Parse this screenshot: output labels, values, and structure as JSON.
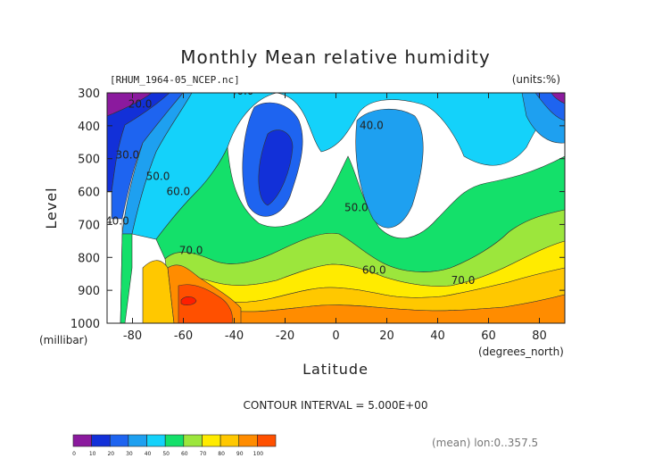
{
  "title": "Monthly Mean relative humidity",
  "file_label": "[RHUM_1964-05_NCEP.nc]",
  "units_label": "(units:%)",
  "contour_interval": "CONTOUR INTERVAL = 5.000E+00",
  "averaging_note": "(mean) lon:0..357.5",
  "chart_data": {
    "type": "heatmap",
    "title": "Monthly Mean relative humidity",
    "xlabel": "Latitude",
    "ylabel": "Level",
    "x_unit": "(degrees_north)",
    "y_unit": "(millibar)",
    "xlim": [
      -90,
      90
    ],
    "ylim": [
      1000,
      300
    ],
    "x_ticks": [
      -80,
      -60,
      -40,
      -20,
      0,
      20,
      40,
      60,
      80
    ],
    "x_tick_labels": [
      "-80",
      "-60",
      "-40",
      "-20",
      "0",
      "20",
      "40",
      "60",
      "80"
    ],
    "y_ticks": [
      300,
      400,
      500,
      600,
      700,
      800,
      900,
      1000
    ],
    "y_tick_labels": [
      "300",
      "400",
      "500",
      "600",
      "700",
      "800",
      "900",
      "1000"
    ],
    "contour_interval": 5,
    "levels": [
      0,
      10,
      20,
      30,
      40,
      50,
      60,
      70,
      80,
      90,
      100
    ],
    "colorbar_labels": [
      "0",
      "10",
      "20",
      "30",
      "40",
      "50",
      "60",
      "70",
      "80",
      "90",
      "100"
    ],
    "colors": [
      "#8b1a9e",
      "#1230d8",
      "#1e64f0",
      "#1ea0f0",
      "#14d2fa",
      "#14e06a",
      "#9ce63c",
      "#ffeb00",
      "#ffc800",
      "#ff8c00",
      "#ff5000",
      "#ff1e00"
    ],
    "contour_labels": [
      {
        "lat": -77,
        "lev": 345,
        "text": "20.0"
      },
      {
        "lat": -37,
        "lev": 305,
        "text": "40.0"
      },
      {
        "lat": 14,
        "lev": 410,
        "text": "40.0"
      },
      {
        "lat": -82,
        "lev": 500,
        "text": "30.0"
      },
      {
        "lat": -70,
        "lev": 565,
        "text": "50.0"
      },
      {
        "lat": -62,
        "lev": 610,
        "text": "60.0"
      },
      {
        "lat": -86,
        "lev": 700,
        "text": "40.0"
      },
      {
        "lat": -57,
        "lev": 790,
        "text": "70.0"
      },
      {
        "lat": 8,
        "lev": 660,
        "text": "50.0"
      },
      {
        "lat": 15,
        "lev": 850,
        "text": "60.0"
      },
      {
        "lat": 50,
        "lev": 880,
        "text": "70.0"
      }
    ],
    "grid": false,
    "legend": "bottom-left"
  }
}
